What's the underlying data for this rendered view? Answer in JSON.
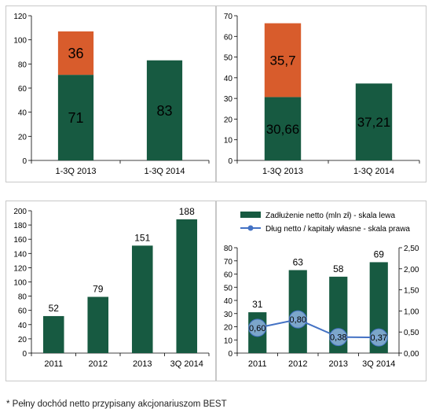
{
  "colors": {
    "green": "#175a41",
    "orange": "#d85c2c",
    "blue": "#4472c4",
    "bubble": "#8eb4e3",
    "axis": "#000000"
  },
  "footnote": "* Pełny dochód netto przypisany akcjonariuszom BEST",
  "chart_data": [
    {
      "type": "bar",
      "stacked": true,
      "categories": [
        "1-3Q 2013",
        "1-3Q 2014"
      ],
      "series": [
        {
          "values": [
            71,
            83
          ],
          "labels": [
            "71",
            "83"
          ],
          "color": "#175a41"
        },
        {
          "values": [
            36,
            0
          ],
          "labels": [
            "36",
            ""
          ],
          "color": "#d85c2c"
        }
      ],
      "ylim": [
        0,
        120
      ],
      "yticks": [
        "0",
        "20",
        "40",
        "60",
        "80",
        "100",
        "120"
      ],
      "title": "",
      "xlabel": "",
      "ylabel": ""
    },
    {
      "type": "bar",
      "stacked": true,
      "categories": [
        "1-3Q 2013",
        "1-3Q 2014"
      ],
      "series": [
        {
          "values": [
            30.66,
            37.21
          ],
          "labels": [
            "30,66",
            "37,21"
          ],
          "color": "#175a41"
        },
        {
          "values": [
            35.7,
            0
          ],
          "labels": [
            "35,7",
            ""
          ],
          "color": "#d85c2c"
        }
      ],
      "ylim": [
        0,
        70
      ],
      "yticks": [
        "0",
        "10",
        "20",
        "30",
        "40",
        "50",
        "60",
        "70"
      ],
      "title": "",
      "xlabel": "",
      "ylabel": ""
    },
    {
      "type": "bar",
      "categories": [
        "2011",
        "2012",
        "2013",
        "3Q 2014"
      ],
      "values": [
        52,
        79,
        151,
        188
      ],
      "labels": [
        "52",
        "79",
        "151",
        "188"
      ],
      "ylim": [
        0,
        200
      ],
      "yticks": [
        "0",
        "20",
        "40",
        "60",
        "80",
        "100",
        "120",
        "140",
        "160",
        "180",
        "200"
      ],
      "title": "",
      "xlabel": "",
      "ylabel": ""
    },
    {
      "type": "bar",
      "categories": [
        "2011",
        "2012",
        "2013",
        "3Q 2014"
      ],
      "legend_position": "top",
      "series": [
        {
          "name": "Zadłużenie netto (mln zł) - skala lewa",
          "type": "bar",
          "axis": "left",
          "values": [
            31,
            63,
            58,
            69
          ],
          "labels": [
            "31",
            "63",
            "58",
            "69"
          ]
        },
        {
          "name": "Dług netto / kapitały własne - skala prawa",
          "type": "line",
          "axis": "right",
          "values": [
            0.6,
            0.8,
            0.38,
            0.37
          ],
          "labels": [
            "0,60",
            "0,80",
            "0,38",
            "0,37"
          ]
        }
      ],
      "ylim": [
        0,
        80
      ],
      "yticks": [
        "0",
        "10",
        "20",
        "30",
        "40",
        "50",
        "60",
        "70",
        "80"
      ],
      "y2lim": [
        0,
        2.5
      ],
      "y2ticks": [
        "0,00",
        "0,50",
        "1,00",
        "1,50",
        "2,00",
        "2,50"
      ],
      "title": "",
      "xlabel": "",
      "ylabel": ""
    }
  ]
}
